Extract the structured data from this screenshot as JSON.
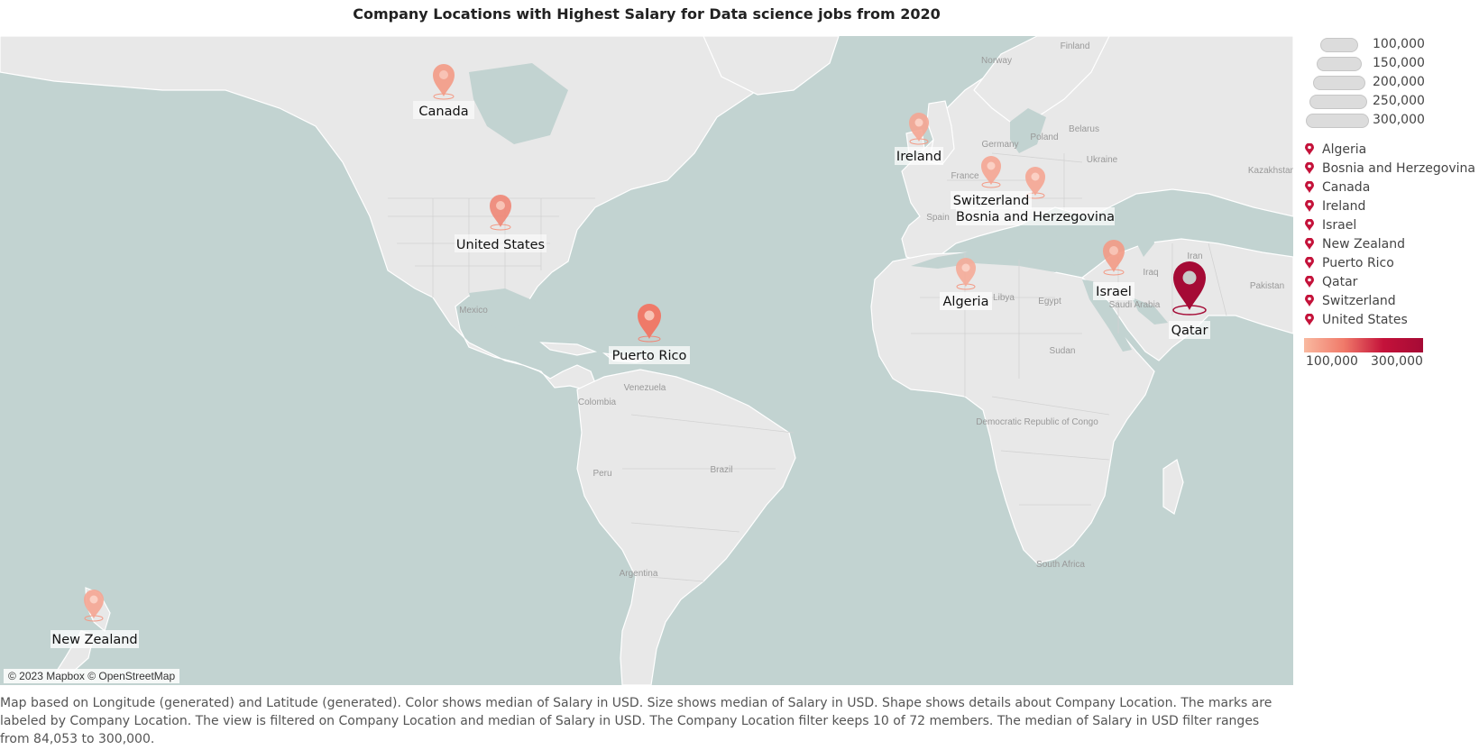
{
  "title": "Company Locations with Highest Salary for Data science jobs from 2020",
  "attribution": "© 2023 Mapbox © OpenStreetMap",
  "caption": "Map based on Longitude (generated) and Latitude (generated).  Color shows median of Salary in USD.  Size shows median of Salary in USD.  Shape shows details about Company Location.  The marks are labeled by Company Location. The view is filtered on Company Location and median of Salary in USD. The Company Location filter keeps 10 of 72 members. The median of Salary in USD filter ranges from 84,053 to 300,000.",
  "size_legend": [
    "100,000",
    "150,000",
    "200,000",
    "250,000",
    "300,000"
  ],
  "shape_legend": [
    "Algeria",
    "Bosnia and Herzegovina",
    "Canada",
    "Ireland",
    "Israel",
    "New Zealand",
    "Puerto Rico",
    "Qatar",
    "Switzerland",
    "United States"
  ],
  "color_legend": {
    "min_label": "100,000",
    "max_label": "300,000",
    "low_color": "#f9b9a0",
    "high_color": "#a50a35"
  },
  "colors": {
    "ocean": "#c2d3d1",
    "land": "#e8e8e8",
    "pin_low": "#f39a85",
    "pin_high": "#a50a35"
  },
  "map_labels": {
    "canada": "Canada",
    "united_states": "United States",
    "puerto_rico": "Puerto Rico",
    "ireland": "Ireland",
    "switzerland": "Switzerland",
    "bosnia": "Bosnia and Herzegovina",
    "algeria": "Algeria",
    "israel": "Israel",
    "qatar": "Qatar",
    "new_zealand": "New Zealand"
  },
  "base_labels": {
    "mexico": "Mexico",
    "venezuela": "Venezuela",
    "colombia": "Colombia",
    "brazil": "Brazil",
    "peru": "Peru",
    "argentina": "Argentina",
    "libya": "Libya",
    "egypt": "Egypt",
    "sudan": "Sudan",
    "drc": "Democratic Republic of Congo",
    "south_africa": "South Africa",
    "saudi": "Saudi Arabia",
    "iraq": "Iraq",
    "iran": "Iran",
    "pakistan": "Pakistan",
    "kazakhstan": "Kazakhstan",
    "france": "France",
    "spain": "Spain",
    "germany": "Germany",
    "poland": "Poland",
    "ukraine": "Ukraine",
    "belarus": "Belarus",
    "norway": "Norway",
    "finland": "Finland"
  }
}
